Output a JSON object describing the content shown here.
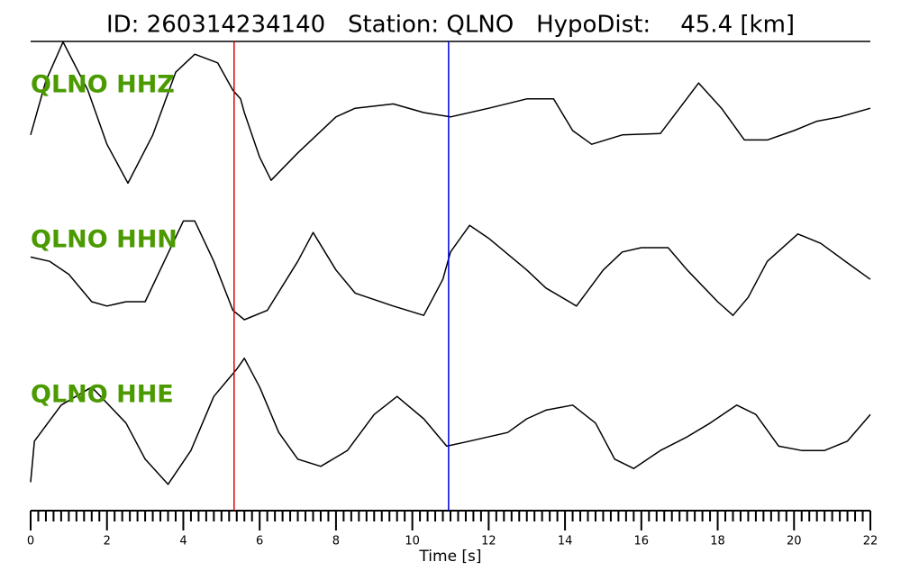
{
  "chart_data": {
    "type": "line",
    "title": "ID: 260314234140   Station: QLNO   HypoDist:    45.4 [km]",
    "xlabel": "Time [s]",
    "xlim": [
      0,
      22
    ],
    "xticks": [
      0,
      2,
      4,
      6,
      8,
      10,
      12,
      14,
      16,
      18,
      20,
      22
    ],
    "xminorticks": [
      0.2,
      0.4,
      0.6,
      0.8,
      1,
      1.2,
      1.4,
      1.6,
      1.8,
      2.2,
      2.4,
      2.6,
      2.8,
      3,
      3.2,
      3.4,
      3.6,
      3.8,
      4.2,
      4.4,
      4.6,
      4.8,
      5,
      5.2,
      5.4,
      5.6,
      5.8,
      6.2,
      6.4,
      6.6,
      6.8,
      7,
      7.2,
      7.4,
      7.6,
      7.8,
      8.2,
      8.4,
      8.6,
      8.8,
      9,
      9.2,
      9.4,
      9.6,
      9.8,
      10.2,
      10.4,
      10.6,
      10.8,
      11,
      11.2,
      11.4,
      11.6,
      11.8,
      12.2,
      12.4,
      12.6,
      12.8,
      13,
      13.2,
      13.4,
      13.6,
      13.8,
      14.2,
      14.4,
      14.6,
      14.8,
      15,
      15.2,
      15.4,
      15.6,
      15.8,
      16.2,
      16.4,
      16.6,
      16.8,
      17,
      17.2,
      17.4,
      17.6,
      17.8,
      18.2,
      18.4,
      18.6,
      18.8,
      19,
      19.2,
      19.4,
      19.6,
      19.8,
      20.2,
      20.4,
      20.6,
      20.8,
      21,
      21.2,
      21.4,
      21.6,
      21.8
    ],
    "ylim": [
      -1,
      1
    ],
    "picks": [
      {
        "color": "#e00000",
        "x": 5.33
      },
      {
        "color": "#0000e0",
        "x": 10.95
      }
    ],
    "series": [
      {
        "name": "QLNO HHZ",
        "color": "#000000",
        "x": [
          0,
          0.4,
          0.85,
          1.5,
          2.0,
          2.55,
          3.2,
          3.8,
          4.3,
          4.9,
          5.3,
          5.5,
          5.6,
          6.0,
          6.3,
          7.0,
          8.0,
          8.5,
          9.5,
          10.3,
          11.0,
          12.0,
          13.0,
          13.7,
          14.2,
          14.7,
          15.5,
          16.5,
          17.0,
          17.5,
          18.1,
          18.7,
          19.3,
          20.0,
          20.6,
          21.2,
          22
        ],
        "values": [
          -0.31,
          0.44,
          0.98,
          0.31,
          -0.44,
          -0.98,
          -0.31,
          0.56,
          0.81,
          0.69,
          0.31,
          0.19,
          0,
          -0.62,
          -0.94,
          -0.56,
          -0.06,
          0.06,
          0.12,
          0,
          -0.06,
          0.06,
          0.19,
          0.19,
          -0.25,
          -0.44,
          -0.31,
          -0.29,
          0.06,
          0.41,
          0.06,
          -0.38,
          -0.38,
          -0.25,
          -0.12,
          -0.06,
          0.06
        ]
      },
      {
        "name": "QLNO HHN",
        "color": "#000000",
        "x": [
          0,
          0.5,
          1.0,
          1.6,
          2.0,
          2.5,
          3.0,
          3.5,
          4.0,
          4.3,
          4.8,
          5.3,
          5.6,
          6.2,
          7.0,
          7.4,
          8.0,
          8.5,
          9.5,
          10.3,
          10.8,
          11.0,
          11.5,
          12.0,
          13.0,
          13.5,
          14.3,
          15.0,
          15.5,
          16.0,
          16.7,
          17.2,
          18.0,
          18.4,
          18.8,
          19.3,
          20.1,
          20.7,
          21.5,
          22
        ],
        "values": [
          0.12,
          0.06,
          -0.12,
          -0.5,
          -0.56,
          -0.5,
          -0.5,
          0.06,
          0.62,
          0.62,
          0.06,
          -0.62,
          -0.75,
          -0.62,
          0.06,
          0.46,
          -0.06,
          -0.38,
          -0.56,
          -0.69,
          -0.19,
          0.19,
          0.56,
          0.38,
          -0.06,
          -0.31,
          -0.56,
          -0.06,
          0.19,
          0.25,
          0.25,
          -0.06,
          -0.5,
          -0.69,
          -0.44,
          0.06,
          0.44,
          0.31,
          0,
          -0.19
        ]
      },
      {
        "name": "QLNO HHE",
        "color": "#000000",
        "x": [
          0,
          0.1,
          0.8,
          1.6,
          2.5,
          3.0,
          3.6,
          4.2,
          4.8,
          5.4,
          5.6,
          6.0,
          6.5,
          7.0,
          7.6,
          8.3,
          9.0,
          9.6,
          10.3,
          10.9,
          11.5,
          12.5,
          13.0,
          13.5,
          14.2,
          14.8,
          15.3,
          15.8,
          16.5,
          17.2,
          17.8,
          18.5,
          19.0,
          19.6,
          20.2,
          20.8,
          21.4,
          22
        ],
        "values": [
          -0.88,
          -0.31,
          0.19,
          0.44,
          -0.06,
          -0.56,
          -0.91,
          -0.44,
          0.31,
          0.69,
          0.84,
          0.44,
          -0.19,
          -0.56,
          -0.66,
          -0.44,
          0.06,
          0.31,
          0,
          -0.38,
          -0.31,
          -0.19,
          0,
          0.12,
          0.19,
          -0.06,
          -0.56,
          -0.69,
          -0.44,
          -0.25,
          -0.06,
          0.19,
          0.06,
          -0.38,
          -0.44,
          -0.44,
          -0.31,
          0.06
        ]
      }
    ]
  }
}
